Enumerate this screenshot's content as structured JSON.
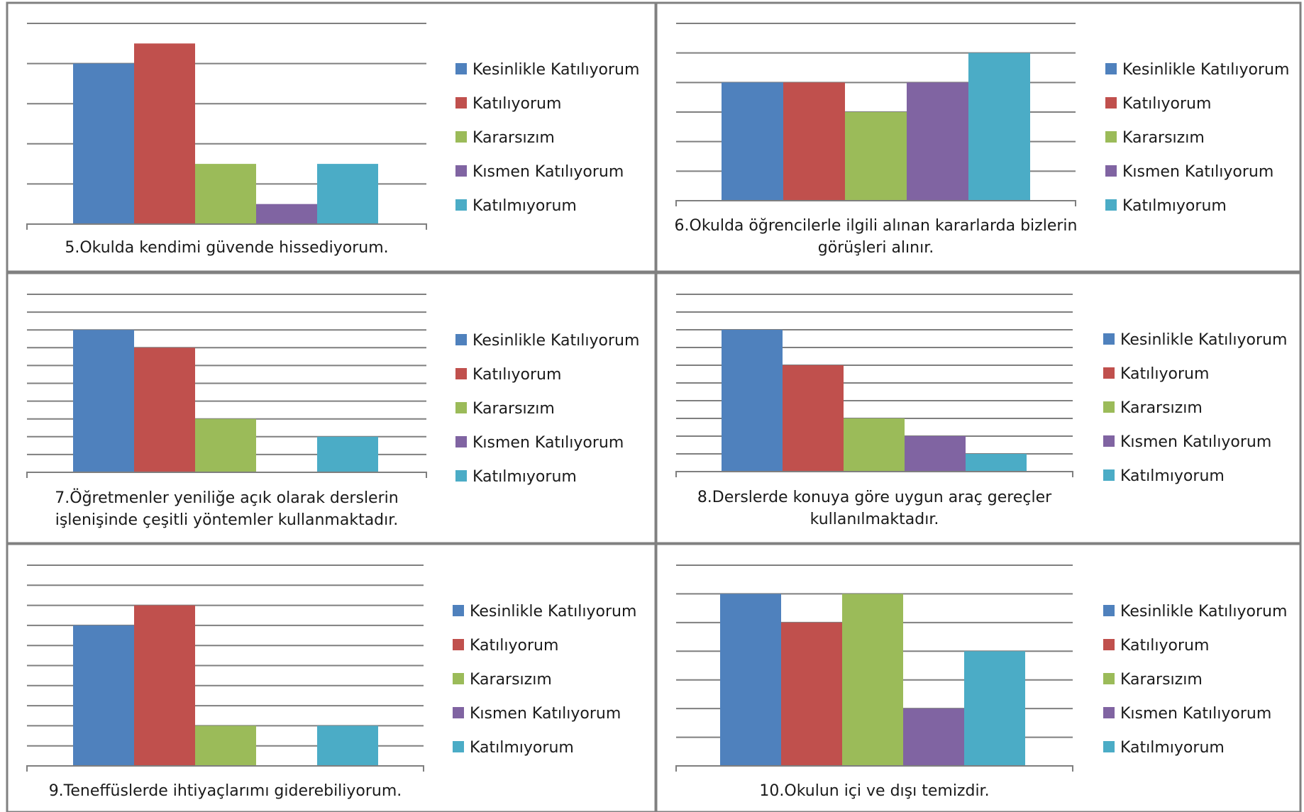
{
  "legend": [
    "Kesinlikle Katılıyorum",
    "Katılıyorum",
    "Kararsızım",
    "Kısmen Katılıyorum",
    "Katılmıyorum"
  ],
  "colors": [
    "#4f81bd",
    "#c0504d",
    "#9bbb59",
    "#8064a2",
    "#4bacc6"
  ],
  "chart_data": [
    {
      "type": "bar",
      "title_lines": [
        "5.Okulda kendimi güvende hissediyorum."
      ],
      "categories": [
        "Kesinlikle Katılıyorum",
        "Katılıyorum",
        "Kararsızım",
        "Kısmen Katılıyorum",
        "Katılmıyorum"
      ],
      "values": [
        4,
        4.5,
        1.5,
        0.5,
        1.5
      ],
      "ylim": [
        0,
        5
      ],
      "grid": true,
      "legend_position": "right"
    },
    {
      "type": "bar",
      "title_lines": [
        "6.Okulda öğrencilerle ilgili alınan kararlarda bizlerin",
        "görüşleri alınır."
      ],
      "categories": [
        "Kesinlikle Katılıyorum",
        "Katılıyorum",
        "Kararsızım",
        "Kısmen Katılıyorum",
        "Katılmıyorum"
      ],
      "values": [
        4,
        4,
        3,
        4,
        5
      ],
      "ylim": [
        0,
        6
      ],
      "grid": true,
      "legend_position": "right"
    },
    {
      "type": "bar",
      "title_lines": [
        "7.Öğretmenler yeniliğe açık olarak derslerin",
        "işlenişinde çeşitli yöntemler kullanmaktadır."
      ],
      "categories": [
        "Kesinlikle Katılıyorum",
        "Katılıyorum",
        "Kararsızım",
        "Kısmen Katılıyorum",
        "Katılmıyorum"
      ],
      "values": [
        8,
        7,
        3,
        0,
        2
      ],
      "ylim": [
        0,
        10
      ],
      "grid": true,
      "legend_position": "right"
    },
    {
      "type": "bar",
      "title_lines": [
        "8.Derslerde konuya göre uygun araç gereçler",
        "kullanılmaktadır."
      ],
      "categories": [
        "Kesinlikle Katılıyorum",
        "Katılıyorum",
        "Kararsızım",
        "Kısmen Katılıyorum",
        "Katılmıyorum"
      ],
      "values": [
        8,
        6,
        3,
        2,
        1
      ],
      "ylim": [
        0,
        10
      ],
      "grid": true,
      "legend_position": "right"
    },
    {
      "type": "bar",
      "title_lines": [
        "9.Teneffüslerde ihtiyaçlarımı giderebiliyorum."
      ],
      "categories": [
        "Kesinlikle Katılıyorum",
        "Katılıyorum",
        "Kararsızım",
        "Kısmen Katılıyorum",
        "Katılmıyorum"
      ],
      "values": [
        7,
        8,
        2,
        0,
        2
      ],
      "ylim": [
        0,
        10
      ],
      "grid": true,
      "legend_position": "right"
    },
    {
      "type": "bar",
      "title_lines": [
        "10.Okulun içi ve dışı temizdir."
      ],
      "categories": [
        "Kesinlikle Katılıyorum",
        "Katılıyorum",
        "Kararsızım",
        "Kısmen Katılıyorum",
        "Katılmıyorum"
      ],
      "values": [
        6,
        5,
        6,
        2,
        4
      ],
      "ylim": [
        0,
        7
      ],
      "grid": true,
      "legend_position": "right"
    }
  ]
}
